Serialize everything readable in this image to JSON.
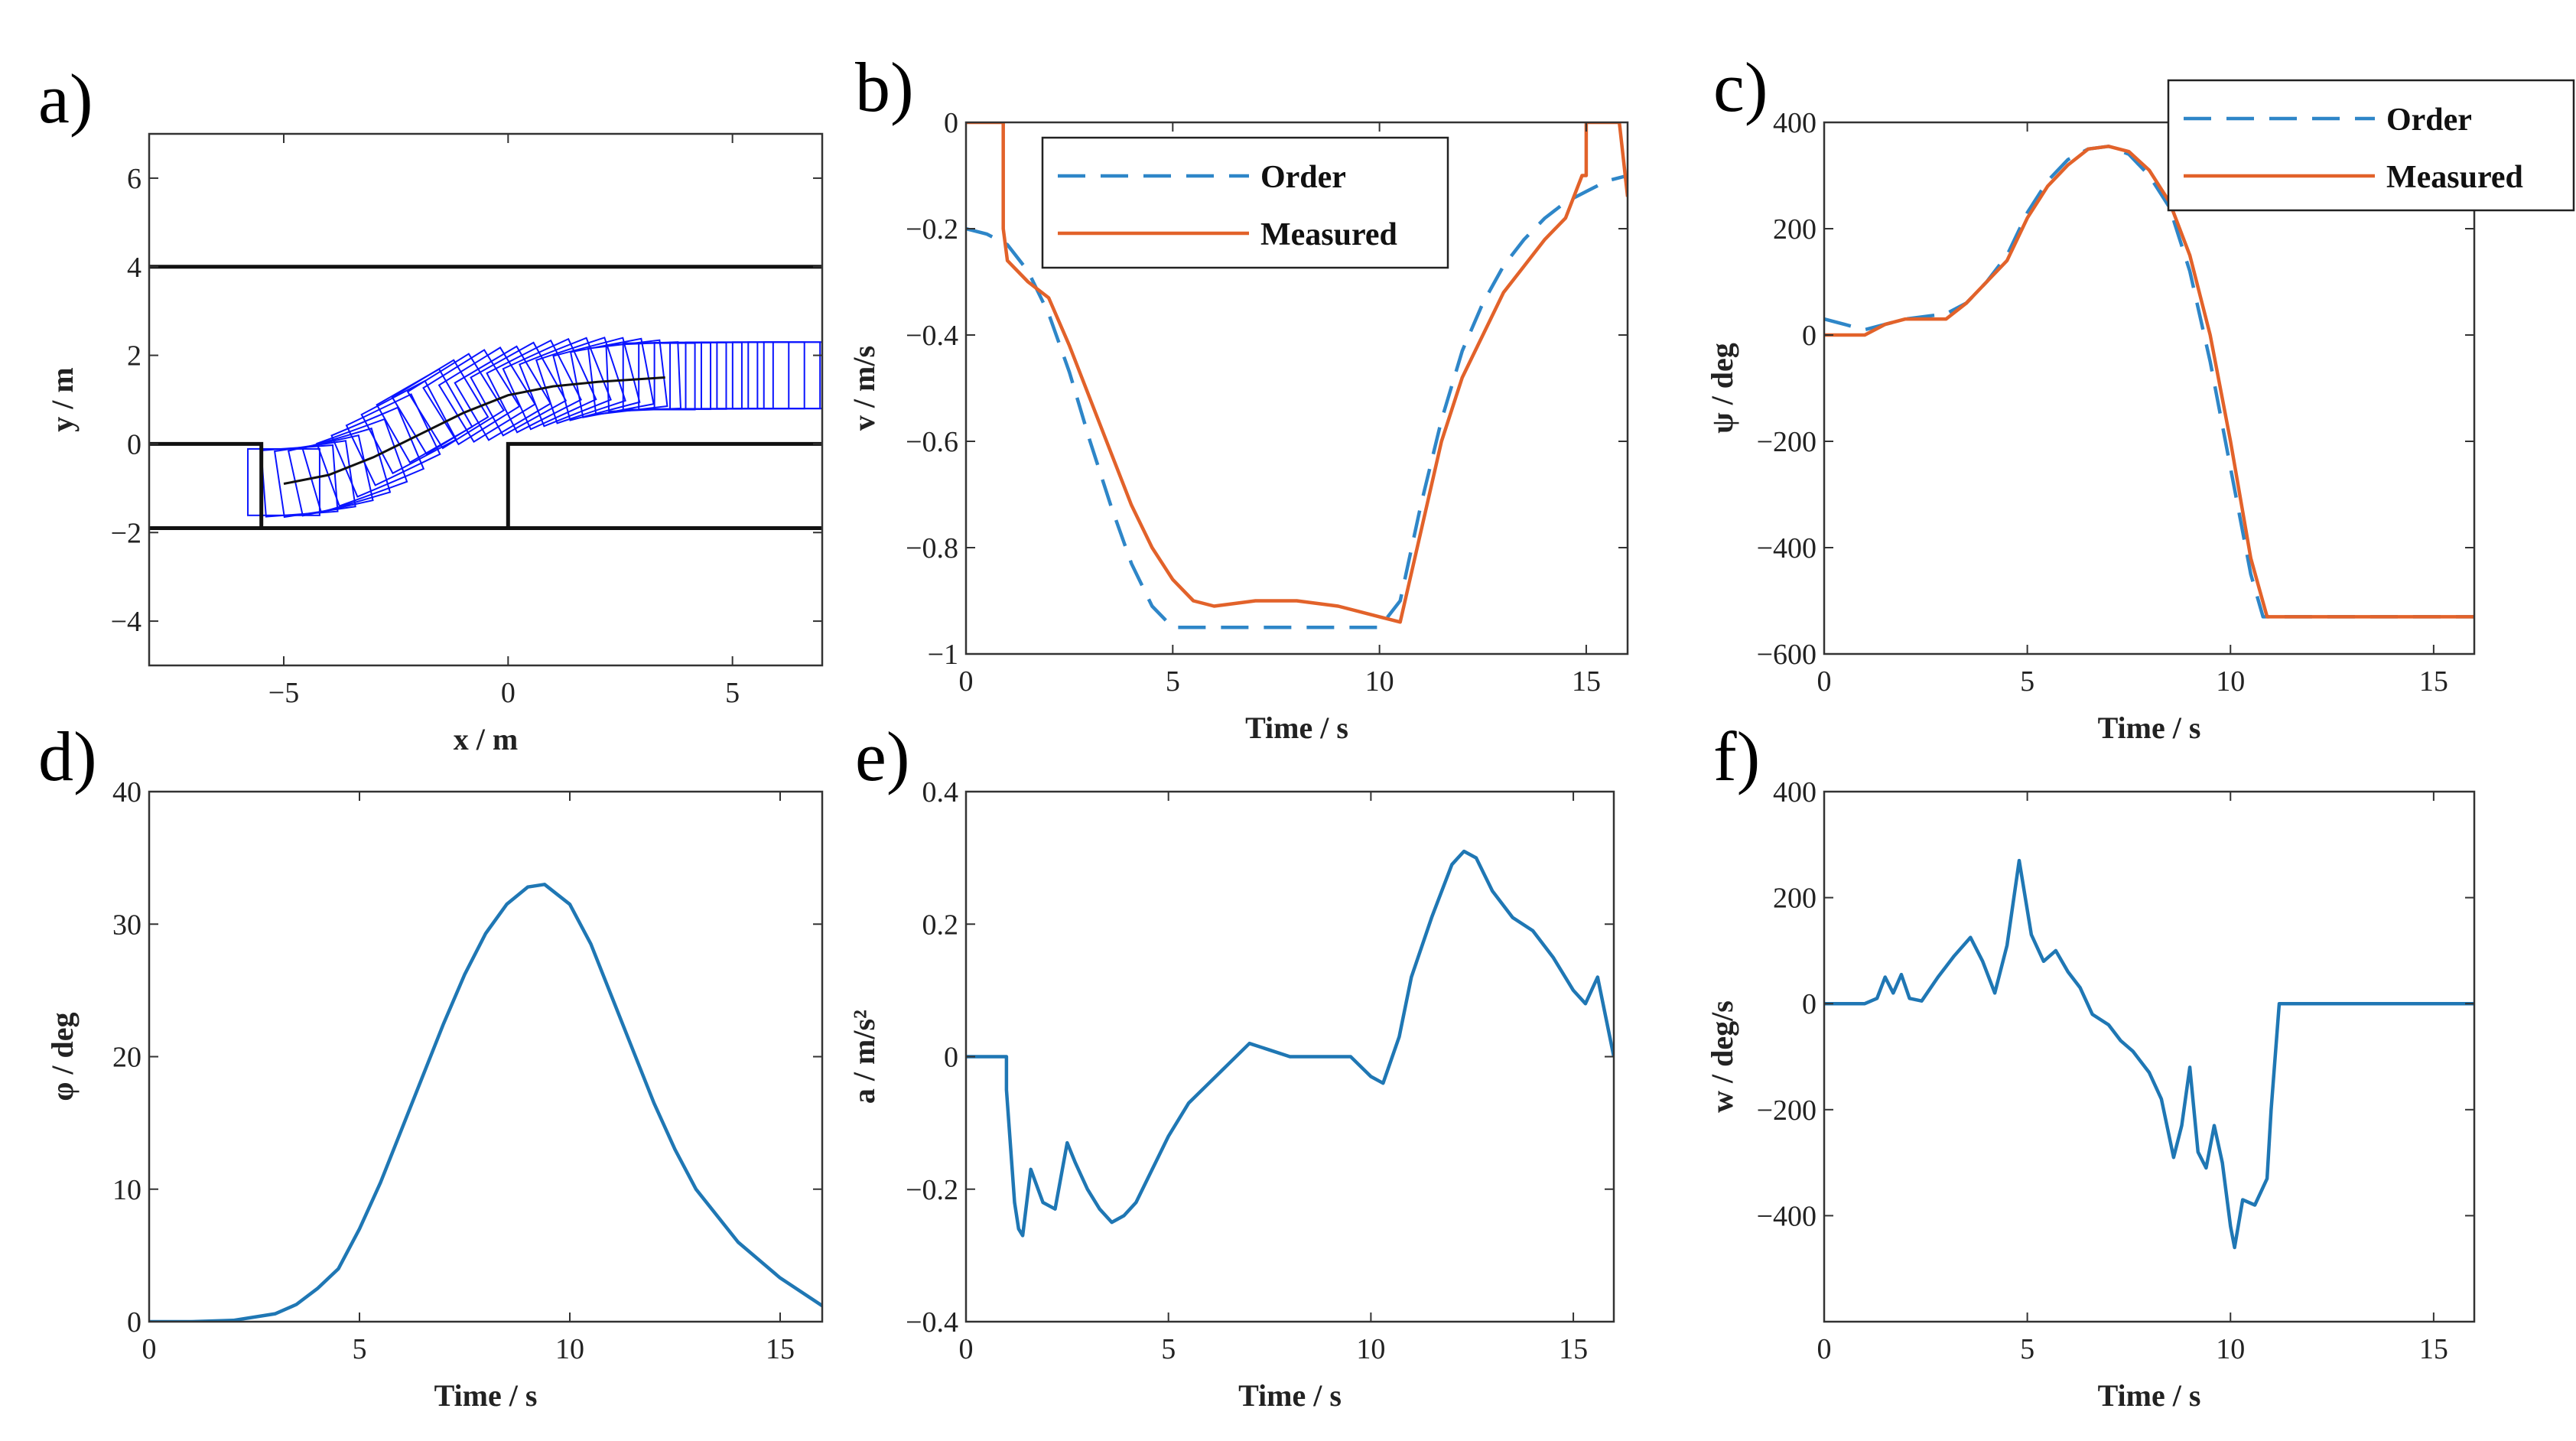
{
  "colors": {
    "order": "#2e86c8",
    "measured": "#e2622a",
    "single": "#1f77b4",
    "vehicle": "#0a14ff",
    "road": "#111111"
  },
  "chart_data": [
    {
      "id": "a",
      "letter": "a)",
      "type": "line",
      "xlabel": "x / m",
      "ylabel": "y / m",
      "xlim": [
        -8,
        7
      ],
      "ylim": [
        -5,
        7
      ],
      "xticks": [
        -5,
        0,
        5
      ],
      "xtick_labels": [
        "−5",
        "0",
        "5"
      ],
      "yticks": [
        -4,
        -2,
        0,
        2,
        4,
        6
      ],
      "ytick_labels": [
        "−4",
        "−2",
        "0",
        "2",
        "4",
        "6"
      ],
      "road_edges": [
        {
          "name": "upper-boundary",
          "x": [
            -8,
            7
          ],
          "y": [
            4,
            4
          ]
        },
        {
          "name": "lower-boundary",
          "x": [
            -8,
            7
          ],
          "y": [
            -1.9,
            -1.9
          ]
        },
        {
          "name": "parking-slot-outline",
          "x": [
            -8,
            -5.5,
            -5.5,
            0,
            0,
            7
          ],
          "y": [
            0,
            0,
            -1.9,
            -1.9,
            0,
            0
          ]
        }
      ],
      "center_path": {
        "x": [
          -5,
          -4,
          -3,
          -2,
          -1,
          0,
          1,
          2,
          3.5
        ],
        "y": [
          -0.9,
          -0.7,
          -0.3,
          0.2,
          0.7,
          1.1,
          1.3,
          1.4,
          1.5
        ]
      },
      "vehicle_footprints": "sequence of rectangular vehicle outlines along the parking path"
    },
    {
      "id": "b",
      "letter": "b)",
      "type": "line",
      "xlabel": "Time / s",
      "ylabel": "v / m/s",
      "xlim": [
        0,
        16
      ],
      "ylim": [
        -1,
        0
      ],
      "xticks": [
        0,
        5,
        10,
        15
      ],
      "xtick_labels": [
        "0",
        "5",
        "10",
        "15"
      ],
      "yticks": [
        -1,
        -0.8,
        -0.6,
        -0.4,
        -0.2,
        0
      ],
      "ytick_labels": [
        "−1",
        "−0.8",
        "−0.6",
        "−0.4",
        "−0.2",
        "0"
      ],
      "legend": {
        "position": "top-center",
        "entries": [
          "Order",
          "Measured"
        ]
      },
      "series": [
        {
          "name": "Order",
          "style": "dashed",
          "x": [
            0,
            0.5,
            1,
            1.5,
            2,
            2.5,
            3,
            3.5,
            4,
            4.5,
            5,
            6,
            7,
            8,
            9,
            10,
            10.5,
            11,
            11.5,
            12,
            12.5,
            13,
            13.5,
            14,
            14.5,
            15,
            15.5,
            16
          ],
          "y": [
            -0.2,
            -0.21,
            -0.23,
            -0.28,
            -0.36,
            -0.47,
            -0.6,
            -0.72,
            -0.83,
            -0.91,
            -0.95,
            -0.95,
            -0.95,
            -0.95,
            -0.95,
            -0.95,
            -0.9,
            -0.72,
            -0.56,
            -0.43,
            -0.34,
            -0.27,
            -0.22,
            -0.18,
            -0.15,
            -0.13,
            -0.11,
            -0.1
          ]
        },
        {
          "name": "Measured",
          "style": "solid",
          "x": [
            0,
            0.9,
            0.9,
            1,
            1.5,
            2,
            2.5,
            3,
            3.5,
            4,
            4.5,
            5,
            5.5,
            6,
            7,
            8,
            9,
            10,
            10.5,
            11,
            11.5,
            12,
            12.5,
            13,
            13.5,
            14,
            14.5,
            14.9,
            15,
            15,
            15.8,
            16
          ],
          "y": [
            0,
            0,
            -0.2,
            -0.26,
            -0.3,
            -0.33,
            -0.42,
            -0.52,
            -0.62,
            -0.72,
            -0.8,
            -0.86,
            -0.9,
            -0.91,
            -0.9,
            -0.9,
            -0.91,
            -0.93,
            -0.94,
            -0.77,
            -0.6,
            -0.48,
            -0.4,
            -0.32,
            -0.27,
            -0.22,
            -0.18,
            -0.1,
            -0.1,
            0,
            0,
            -0.14
          ]
        }
      ]
    },
    {
      "id": "c",
      "letter": "c)",
      "type": "line",
      "xlabel": "Time / s",
      "ylabel": "ψ / deg",
      "xlim": [
        0,
        16
      ],
      "ylim": [
        -600,
        400
      ],
      "xticks": [
        0,
        5,
        10,
        15
      ],
      "xtick_labels": [
        "0",
        "5",
        "10",
        "15"
      ],
      "yticks": [
        -600,
        -400,
        -200,
        0,
        200,
        400
      ],
      "ytick_labels": [
        "−600",
        "−400",
        "−200",
        "0",
        "200",
        "400"
      ],
      "legend": {
        "position": "top-right",
        "entries": [
          "Order",
          "Measured"
        ]
      },
      "series": [
        {
          "name": "Order",
          "style": "dashed",
          "x": [
            0,
            0.5,
            1,
            1.5,
            2,
            3,
            3.5,
            4,
            4.5,
            5,
            5.5,
            6,
            6.5,
            7,
            7.5,
            8,
            8.5,
            9,
            9.5,
            10,
            10.5,
            10.8,
            12,
            16
          ],
          "y": [
            30,
            20,
            10,
            20,
            30,
            40,
            60,
            100,
            150,
            230,
            290,
            330,
            350,
            355,
            340,
            300,
            240,
            120,
            -50,
            -250,
            -450,
            -530,
            -530,
            -530
          ]
        },
        {
          "name": "Measured",
          "style": "solid",
          "x": [
            0,
            1,
            1.5,
            2,
            3,
            3.5,
            4,
            4.5,
            5,
            5.5,
            6,
            6.5,
            7,
            7.5,
            8,
            8.5,
            9,
            9.5,
            10,
            10.5,
            10.9,
            12,
            16
          ],
          "y": [
            0,
            0,
            20,
            30,
            30,
            60,
            100,
            140,
            220,
            280,
            320,
            350,
            355,
            345,
            310,
            250,
            150,
            0,
            -200,
            -420,
            -530,
            -530,
            -530
          ]
        }
      ]
    },
    {
      "id": "d",
      "letter": "d)",
      "type": "line",
      "xlabel": "Time / s",
      "ylabel": "φ / deg",
      "xlim": [
        0,
        16
      ],
      "ylim": [
        0,
        40
      ],
      "xticks": [
        0,
        5,
        10,
        15
      ],
      "xtick_labels": [
        "0",
        "5",
        "10",
        "15"
      ],
      "yticks": [
        0,
        10,
        20,
        30,
        40
      ],
      "ytick_labels": [
        "0",
        "10",
        "20",
        "30",
        "40"
      ],
      "series": [
        {
          "name": "φ",
          "style": "solid",
          "x": [
            0,
            1,
            2,
            3,
            3.5,
            4,
            4.5,
            5,
            5.5,
            6,
            6.5,
            7,
            7.5,
            8,
            8.5,
            9,
            9.4,
            10,
            10.5,
            11,
            11.5,
            12,
            12.5,
            13,
            14,
            15,
            16
          ],
          "y": [
            0,
            0,
            0.1,
            0.6,
            1.3,
            2.5,
            4,
            7,
            10.5,
            14.5,
            18.5,
            22.5,
            26.2,
            29.3,
            31.5,
            32.8,
            33,
            31.5,
            28.5,
            24.5,
            20.5,
            16.5,
            13,
            10,
            6,
            3.3,
            1.2
          ]
        }
      ]
    },
    {
      "id": "e",
      "letter": "e)",
      "type": "line",
      "xlabel": "Time / s",
      "ylabel": "a / m/s²",
      "xlim": [
        0,
        16
      ],
      "ylim": [
        -0.4,
        0.4
      ],
      "xticks": [
        0,
        5,
        10,
        15
      ],
      "xtick_labels": [
        "0",
        "5",
        "10",
        "15"
      ],
      "yticks": [
        -0.4,
        -0.2,
        0,
        0.2,
        0.4
      ],
      "ytick_labels": [
        "−0.4",
        "−0.2",
        "0",
        "0.2",
        "0.4"
      ],
      "series": [
        {
          "name": "a",
          "style": "solid",
          "x": [
            0,
            1,
            1,
            1.2,
            1.3,
            1.4,
            1.6,
            1.9,
            2.2,
            2.5,
            2.7,
            3,
            3.3,
            3.6,
            3.9,
            4.2,
            4.6,
            5,
            5.5,
            6,
            6.5,
            7,
            7.5,
            8,
            9,
            9.5,
            10,
            10.3,
            10.7,
            11,
            11.5,
            12,
            12.3,
            12.6,
            13,
            13.5,
            14,
            14.5,
            15,
            15.3,
            15.6,
            15.8,
            16
          ],
          "y": [
            0,
            0,
            -0.05,
            -0.22,
            -0.26,
            -0.27,
            -0.17,
            -0.22,
            -0.23,
            -0.13,
            -0.16,
            -0.2,
            -0.23,
            -0.25,
            -0.24,
            -0.22,
            -0.17,
            -0.12,
            -0.07,
            -0.04,
            -0.01,
            0.02,
            0.01,
            0,
            0,
            0,
            -0.03,
            -0.04,
            0.03,
            0.12,
            0.21,
            0.29,
            0.31,
            0.3,
            0.25,
            0.21,
            0.19,
            0.15,
            0.1,
            0.08,
            0.12,
            0.06,
            0
          ]
        }
      ]
    },
    {
      "id": "f",
      "letter": "f)",
      "type": "line",
      "xlabel": "Time / s",
      "ylabel": "w / deg/s",
      "xlim": [
        0,
        16
      ],
      "ylim": [
        -600,
        400
      ],
      "xticks": [
        0,
        5,
        10,
        15
      ],
      "xtick_labels": [
        "0",
        "5",
        "10",
        "15"
      ],
      "yticks": [
        -400,
        -200,
        0,
        200,
        400
      ],
      "ytick_labels": [
        "−400",
        "−200",
        "0",
        "200",
        "400"
      ],
      "series": [
        {
          "name": "w",
          "style": "solid",
          "x": [
            0,
            1,
            1.3,
            1.5,
            1.7,
            1.9,
            2.1,
            2.4,
            2.8,
            3.2,
            3.6,
            3.9,
            4.2,
            4.5,
            4.8,
            5.1,
            5.4,
            5.7,
            6,
            6.3,
            6.6,
            7,
            7.3,
            7.6,
            8,
            8.3,
            8.6,
            8.8,
            9,
            9.2,
            9.4,
            9.6,
            9.8,
            10,
            10.1,
            10.3,
            10.6,
            10.9,
            11,
            11.2,
            12,
            13,
            14,
            15,
            16
          ],
          "y": [
            0,
            0,
            10,
            50,
            20,
            55,
            10,
            5,
            50,
            90,
            125,
            80,
            20,
            110,
            270,
            130,
            80,
            100,
            60,
            30,
            -20,
            -40,
            -70,
            -90,
            -130,
            -180,
            -290,
            -230,
            -120,
            -280,
            -310,
            -230,
            -300,
            -420,
            -460,
            -370,
            -380,
            -330,
            -200,
            0,
            0,
            0,
            0,
            0,
            0
          ]
        }
      ]
    }
  ]
}
